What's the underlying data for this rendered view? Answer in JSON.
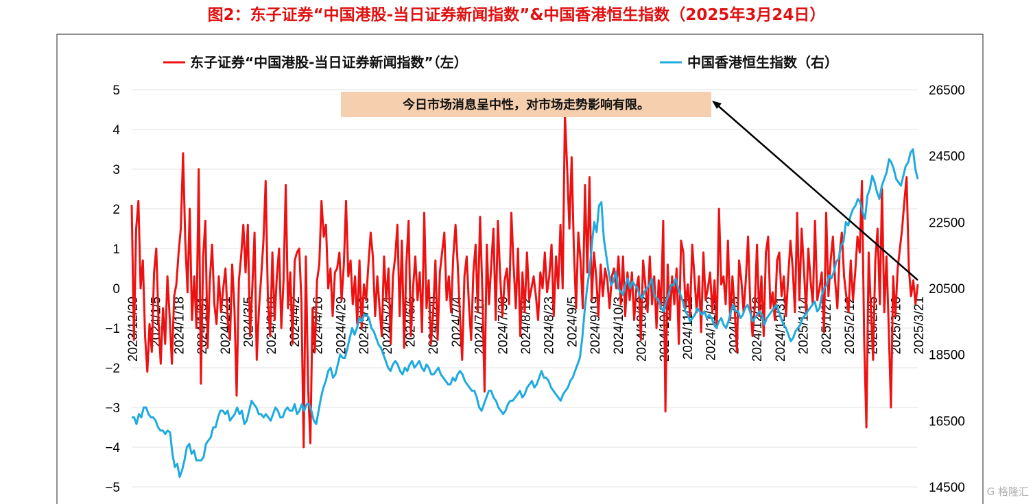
{
  "figure_title": "图2：东子证券“中国港股-当日证券新闻指数”&中国香港恒生指数（2025年3月24日）",
  "watermark": "G 格隆汇",
  "colors": {
    "news_index": "#ee1111",
    "hsi": "#1eaadf",
    "title": "#e01010",
    "note_bg": "#f5cfae"
  },
  "chart_data": {
    "type": "line",
    "title": "图2：东子证券“中国港股-当日证券新闻指数”&中国香港恒生指数（2025年3月24日）",
    "legend": [
      "东子证券“中国港股-当日证券新闻指数”（左）",
      "中国香港恒生指数（右）"
    ],
    "legend_placement": "top",
    "annotation": "今日市场消息呈中性，对市场走势影响有限。",
    "y_left": {
      "min": -5,
      "max": 5,
      "ticks": [
        5,
        4,
        3,
        2,
        1,
        0,
        -1,
        -2,
        -3,
        -4,
        -5
      ],
      "tick_labels": [
        "5",
        "4",
        "3",
        "2",
        "1",
        "0",
        "−1",
        "−2",
        "−3",
        "−4",
        "−5"
      ]
    },
    "y_right": {
      "min": 14500,
      "max": 26500,
      "ticks": [
        26500,
        24500,
        22500,
        20500,
        18500,
        16500,
        14500
      ],
      "tick_labels": [
        "26500",
        "24500",
        "22500",
        "20500",
        "18500",
        "16500",
        "14500"
      ]
    },
    "x_tick_labels": [
      "2023/12/20",
      "2024/1/5",
      "2024/1/18",
      "2024/1/31",
      "2024/2/21",
      "2024/3/5",
      "2024/3/18",
      "2024/4/2",
      "2024/4/16",
      "2024/4/29",
      "2024/5/13",
      "2024/5/24",
      "2024/6/6",
      "2024/6/20",
      "2024/7/4",
      "2024/7/17",
      "2024/7/30",
      "2024/8/12",
      "2024/8/23",
      "2024/9/5",
      "2024/9/19",
      "2024/10/3",
      "2024/10/16",
      "2024/10/29",
      "2024/11/11",
      "2024/11/22",
      "2024/12/5",
      "2024/12/18",
      "2024/12/31",
      "2025/1/14",
      "2025/1/27",
      "2025/2/12",
      "2025/2/25",
      "2025/3/10",
      "2025/3/21"
    ],
    "grid": "horizontal",
    "series": [
      {
        "name": "东子证券“中国港股-当日证券新闻指数”（左）",
        "axis": "left",
        "values": [
          2.1,
          -1.3,
          1.5,
          2.2,
          0.0,
          0.7,
          -1.2,
          -2.1,
          -0.9,
          -1.6,
          0.4,
          1.0,
          -0.8,
          -1.9,
          -0.5,
          -1.4,
          0.3,
          -0.7,
          -1.9,
          -0.2,
          0.1,
          0.9,
          1.5,
          3.4,
          1.2,
          -0.1,
          2.0,
          -0.8,
          0.3,
          -1.0,
          3.0,
          -2.4,
          0.8,
          1.7,
          -1.5,
          0.2,
          1.1,
          -0.4,
          -0.9,
          0.3,
          -0.6,
          0.0,
          0.5,
          -0.8,
          -1.3,
          0.6,
          -0.5,
          -2.7,
          0.2,
          0.8,
          1.6,
          0.4,
          1.6,
          -1.2,
          0.0,
          1.4,
          -1.8,
          -0.5,
          0.3,
          1.2,
          2.7,
          -0.3,
          -1.2,
          0.9,
          -0.8,
          0.3,
          1.0,
          -1.0,
          0.2,
          2.6,
          -0.5,
          0.4,
          -1.4,
          0.7,
          0.9,
          1.0,
          -0.3,
          -4.0,
          0.8,
          -2.5,
          -3.9,
          -0.5,
          -1.6,
          0.2,
          0.6,
          2.2,
          1.3,
          1.6,
          0.0,
          0.5,
          -0.7,
          0.4,
          0.5,
          0.9,
          -0.3,
          0.6,
          2.2,
          0.3,
          0.7,
          -0.4,
          0.3,
          -0.9,
          0.7,
          -1.0,
          0.1,
          -0.3,
          0.6,
          1.4,
          0.8,
          -0.7,
          0.3,
          -0.5,
          -1.2,
          0.8,
          -0.3,
          0.5,
          -1.4,
          0.3,
          0.8,
          1.6,
          -0.7,
          1.2,
          -1.5,
          0.6,
          1.7,
          -1.2,
          0.0,
          0.8,
          -0.3,
          0.4,
          -1.1,
          1.9,
          -0.5,
          0.2,
          -1.4,
          -0.6,
          0.7,
          -1.3,
          0.4,
          0.9,
          1.4,
          -0.3,
          0.3,
          -0.6,
          0.8,
          1.6,
          0.6,
          -0.7,
          -1.8,
          0.3,
          0.8,
          -0.4,
          -1.3,
          0.4,
          1.1,
          -0.6,
          1.8,
          0.0,
          -2.6,
          1.1,
          -0.4,
          0.6,
          1.5,
          -0.8,
          1.7,
          0.3,
          -0.7,
          0.2,
          0.5,
          -0.4,
          1.9,
          0.6,
          -0.5,
          1.0,
          -1.2,
          0.4,
          -0.6,
          0.9,
          -0.3,
          0.0,
          0.3,
          -0.2,
          -0.8,
          0.4,
          0.0,
          0.9,
          -0.1,
          0.3,
          1.1,
          -0.7,
          0.8,
          0.0,
          1.6,
          0.0,
          4.4,
          3.0,
          1.5,
          3.3,
          1.0,
          -0.5,
          1.4,
          0.7,
          -0.5,
          2.6,
          0.4,
          2.8,
          -0.3,
          0.9,
          0.3,
          -0.7,
          0.6,
          -0.2,
          0.5,
          0.2,
          -0.5,
          0.3,
          0.5,
          0.0,
          0.8,
          -0.4,
          0.8,
          -0.7,
          0.4,
          -0.3,
          0.4,
          -0.8,
          0.0,
          0.3,
          -1.3,
          0.7,
          0.1,
          -0.6,
          0.8,
          -0.4,
          0.3,
          -1.0,
          0.2,
          -0.5,
          1.7,
          -3.1,
          0.6,
          -0.8,
          0.3,
          -0.4,
          0.5,
          -1.4,
          1.2,
          0.9,
          -0.5,
          0.1,
          -0.7,
          1.1,
          0.3,
          -0.6,
          0.3,
          -1.1,
          0.9,
          -0.3,
          0.0,
          0.4,
          -0.6,
          0.2,
          -1.0,
          2.0,
          0.1,
          0.3,
          -0.4,
          1.2,
          -0.8,
          0.3,
          -0.5,
          -1.6,
          0.7,
          0.2,
          -0.6,
          0.2,
          1.3,
          -0.4,
          -1.2,
          -0.5,
          1.1,
          -0.7,
          0.3,
          -1.2,
          0.9,
          1.3,
          -0.5,
          -0.1,
          -0.8,
          0.7,
          0.9,
          -0.2,
          0.3,
          -0.7,
          0.3,
          1.2,
          0.5,
          -0.6,
          1.9,
          -0.3,
          1.5,
          0.5,
          -0.6,
          1.0,
          0.2,
          -0.4,
          1.7,
          -0.3,
          0.0,
          0.4,
          -1.1,
          1.9,
          -0.2,
          0.7,
          1.3,
          0.2,
          -0.5,
          0.9,
          1.4,
          0.3,
          -0.2,
          -0.6,
          0.7,
          -0.3,
          0.4,
          1.3,
          0.9,
          2.7,
          -1.3,
          -3.5,
          0.9,
          -0.5,
          -1.8,
          0.7,
          1.5,
          -0.4,
          2.5,
          -0.6,
          0.8,
          -1.0,
          -3.0,
          0.3,
          -0.7,
          0.5,
          1.0,
          1.5,
          2.2,
          2.8,
          0.5,
          -0.2,
          0.2,
          -0.4,
          0.1
        ]
      },
      {
        "name": "中国香港恒生指数（右）",
        "axis": "right",
        "values": [
          16600,
          16600,
          16400,
          16700,
          16600,
          16900,
          16900,
          16700,
          16600,
          16600,
          16500,
          16300,
          16200,
          16200,
          16100,
          16200,
          16150,
          15500,
          15100,
          15200,
          14800,
          15000,
          15300,
          15700,
          15800,
          15500,
          15600,
          15300,
          15300,
          15300,
          15400,
          15800,
          15900,
          16000,
          16300,
          16300,
          16600,
          16800,
          16800,
          16700,
          16800,
          16500,
          16600,
          16700,
          16900,
          16700,
          16800,
          16400,
          16500,
          16800,
          17100,
          17000,
          16900,
          16700,
          16700,
          16600,
          16700,
          16600,
          16500,
          16700,
          16900,
          16800,
          16600,
          16600,
          16800,
          16900,
          16800,
          16800,
          17000,
          16700,
          16800,
          17000,
          16800,
          17000,
          17000,
          16800,
          16500,
          16400,
          16800,
          17200,
          17500,
          17700,
          18000,
          18100,
          17800,
          17900,
          18200,
          18500,
          18400,
          18400,
          18700,
          19000,
          19300,
          19100,
          19300,
          19600,
          19500,
          19700,
          19700,
          19600,
          19300,
          19200,
          19000,
          18800,
          18700,
          18500,
          18300,
          18100,
          18000,
          18200,
          18300,
          18200,
          18000,
          17900,
          18100,
          18000,
          18200,
          18300,
          18100,
          18200,
          18300,
          18100,
          18000,
          18200,
          18100,
          17900,
          17900,
          18000,
          18100,
          17900,
          17800,
          17700,
          17600,
          17600,
          17800,
          17700,
          17900,
          18000,
          17900,
          17700,
          17600,
          17500,
          17400,
          17400,
          17200,
          16900,
          16800,
          17000,
          17200,
          17400,
          17400,
          17200,
          17100,
          16900,
          16800,
          16700,
          16800,
          17000,
          17100,
          17100,
          17200,
          17300,
          17400,
          17200,
          17300,
          17500,
          17600,
          17700,
          17500,
          17600,
          17800,
          18000,
          17800,
          17800,
          17700,
          17500,
          17400,
          17300,
          17200,
          17100,
          17300,
          17400,
          17500,
          17700,
          17800,
          18000,
          18200,
          18400,
          19000,
          19800,
          20500,
          21000,
          21800,
          22500,
          22200,
          23000,
          23100,
          22000,
          21500,
          21000,
          20600,
          20700,
          21000,
          20500,
          20400,
          20300,
          20600,
          20800,
          20500,
          20700,
          20600,
          20500,
          20300,
          20200,
          20400,
          20500,
          20600,
          20800,
          20300,
          20200,
          20100,
          19900,
          19800,
          20100,
          20300,
          20600,
          20600,
          20800,
          20500,
          20300,
          20100,
          19800,
          19700,
          19500,
          19600,
          19700,
          19900,
          19800,
          19700,
          19800,
          19600,
          19700,
          19600,
          19400,
          19300,
          19500,
          19600,
          19400,
          19300,
          19500,
          19800,
          20000,
          19800,
          19800,
          19600,
          19700,
          19900,
          20000,
          19800,
          19500,
          19600,
          19700,
          19800,
          19700,
          19400,
          19600,
          19700,
          19800,
          19900,
          20000,
          19800,
          19600,
          19400,
          19300,
          19100,
          18900,
          19000,
          19200,
          19300,
          19400,
          19600,
          19700,
          19800,
          19900,
          20000,
          20100,
          19800,
          19900,
          20300,
          20500,
          20600,
          20900,
          20800,
          21000,
          21300,
          21400,
          21800,
          21900,
          22500,
          22400,
          22700,
          22900,
          23000,
          23200,
          23100,
          22800,
          22600,
          23300,
          23500,
          23900,
          23700,
          23400,
          23200,
          23600,
          23800,
          24000,
          24400,
          24300,
          24100,
          23800,
          23700,
          23600,
          23900,
          24200,
          24300,
          24600,
          24700,
          24100,
          23800
        ]
      }
    ]
  }
}
